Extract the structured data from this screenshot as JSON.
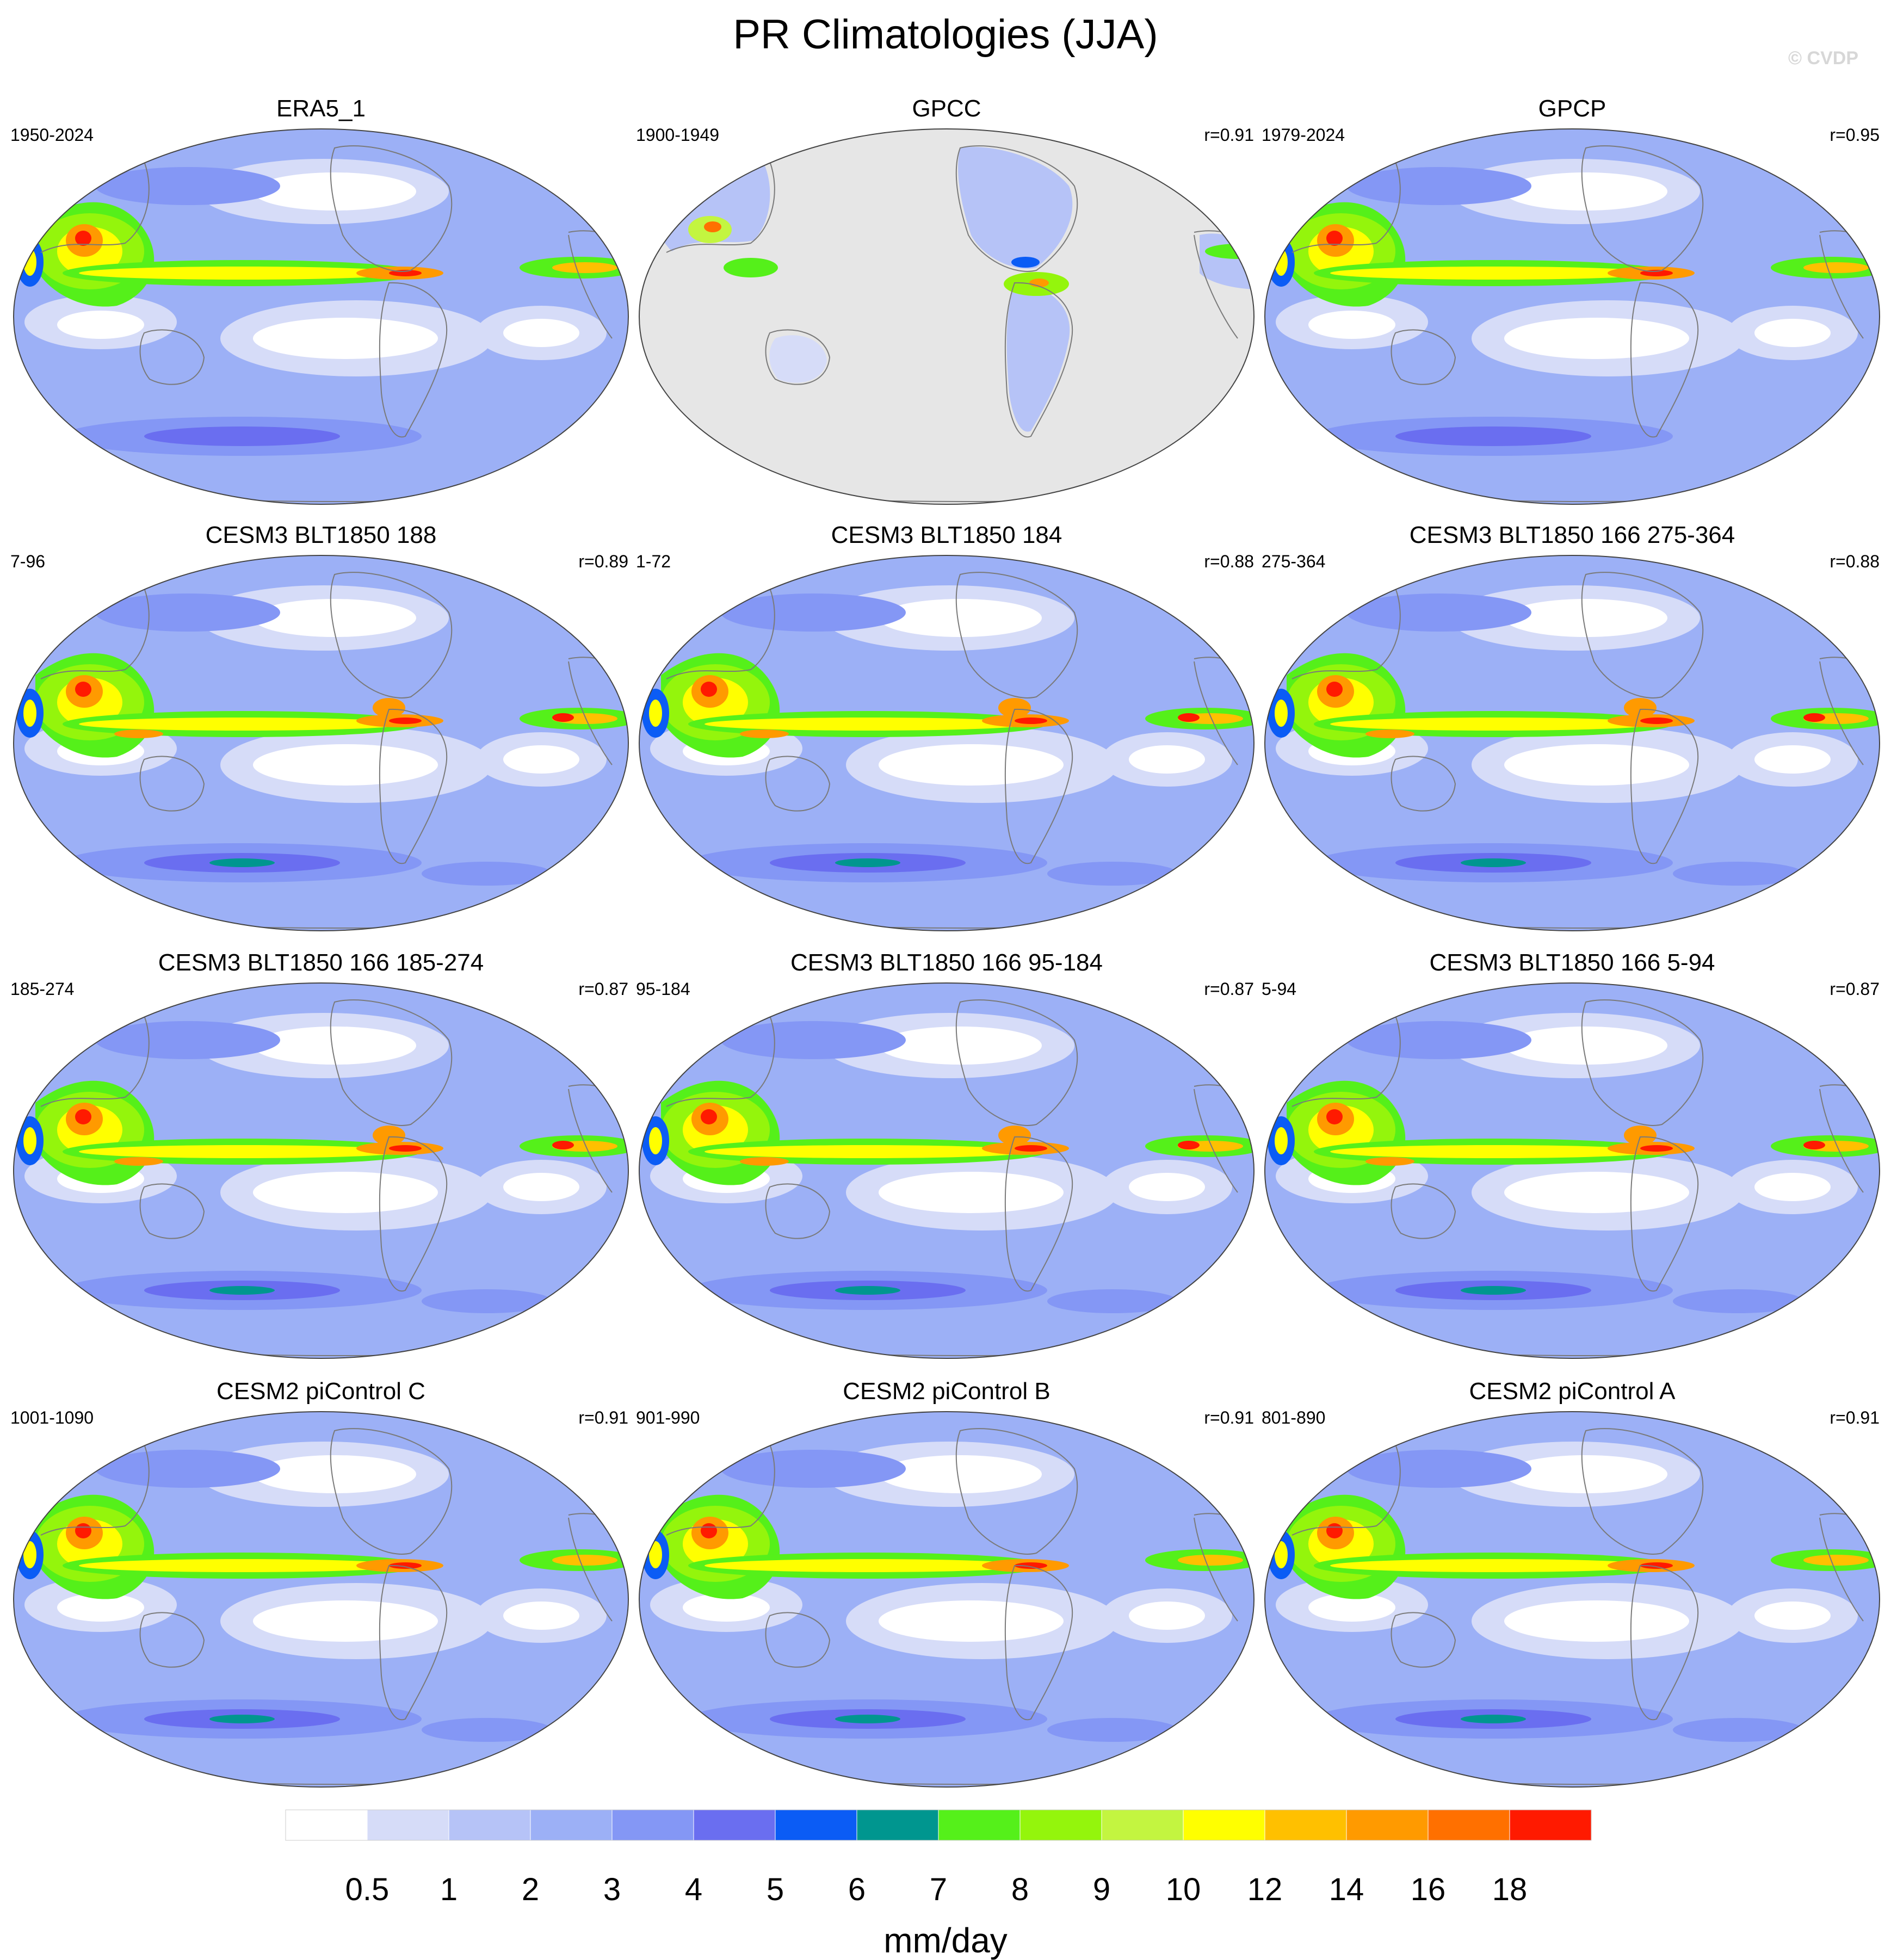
{
  "title": "PR Climatologies (JJA)",
  "watermark": "© CVDP",
  "panels": [
    {
      "title": "ERA5_1",
      "years": "1950-2024",
      "r": "",
      "kind": "obs"
    },
    {
      "title": "GPCC",
      "years": "1900-1949",
      "r": "r=0.91",
      "kind": "land"
    },
    {
      "title": "GPCP",
      "years": "1979-2024",
      "r": "r=0.95",
      "kind": "obs"
    },
    {
      "title": "CESM3 BLT1850 188",
      "years": "7-96",
      "r": "r=0.89",
      "kind": "cesm3"
    },
    {
      "title": "CESM3 BLT1850 184",
      "years": "1-72",
      "r": "r=0.88",
      "kind": "cesm3"
    },
    {
      "title": "CESM3 BLT1850 166 275-364",
      "years": "275-364",
      "r": "r=0.88",
      "kind": "cesm3"
    },
    {
      "title": "CESM3 BLT1850 166 185-274",
      "years": "185-274",
      "r": "r=0.87",
      "kind": "cesm3"
    },
    {
      "title": "CESM3 BLT1850 166 95-184",
      "years": "95-184",
      "r": "r=0.87",
      "kind": "cesm3"
    },
    {
      "title": "CESM3 BLT1850 166 5-94",
      "years": "5-94",
      "r": "r=0.87",
      "kind": "cesm3"
    },
    {
      "title": "CESM2 piControl C",
      "years": "1001-1090",
      "r": "r=0.91",
      "kind": "cesm2"
    },
    {
      "title": "CESM2 piControl B",
      "years": "901-990",
      "r": "r=0.91",
      "kind": "cesm2"
    },
    {
      "title": "CESM2 piControl A",
      "years": "801-890",
      "r": "r=0.91",
      "kind": "cesm2"
    }
  ],
  "colorbar": {
    "unit": "mm/day",
    "levels": [
      "0.5",
      "1",
      "2",
      "3",
      "4",
      "5",
      "6",
      "7",
      "8",
      "9",
      "10",
      "12",
      "14",
      "16",
      "18"
    ],
    "colors": [
      "#ffffff",
      "#d6dcf8",
      "#b6c3f7",
      "#9cb0f6",
      "#8497f5",
      "#6a6ef0",
      "#0b5cf5",
      "#00968f",
      "#55f01a",
      "#94f50c",
      "#c3f540",
      "#ffff00",
      "#ffc000",
      "#ff9a00",
      "#ff7000",
      "#ff1a00"
    ]
  },
  "colors": {
    "missing_data": "#e6e6e6",
    "coastline": "#7a7a7a",
    "map_outline": "#444444"
  }
}
